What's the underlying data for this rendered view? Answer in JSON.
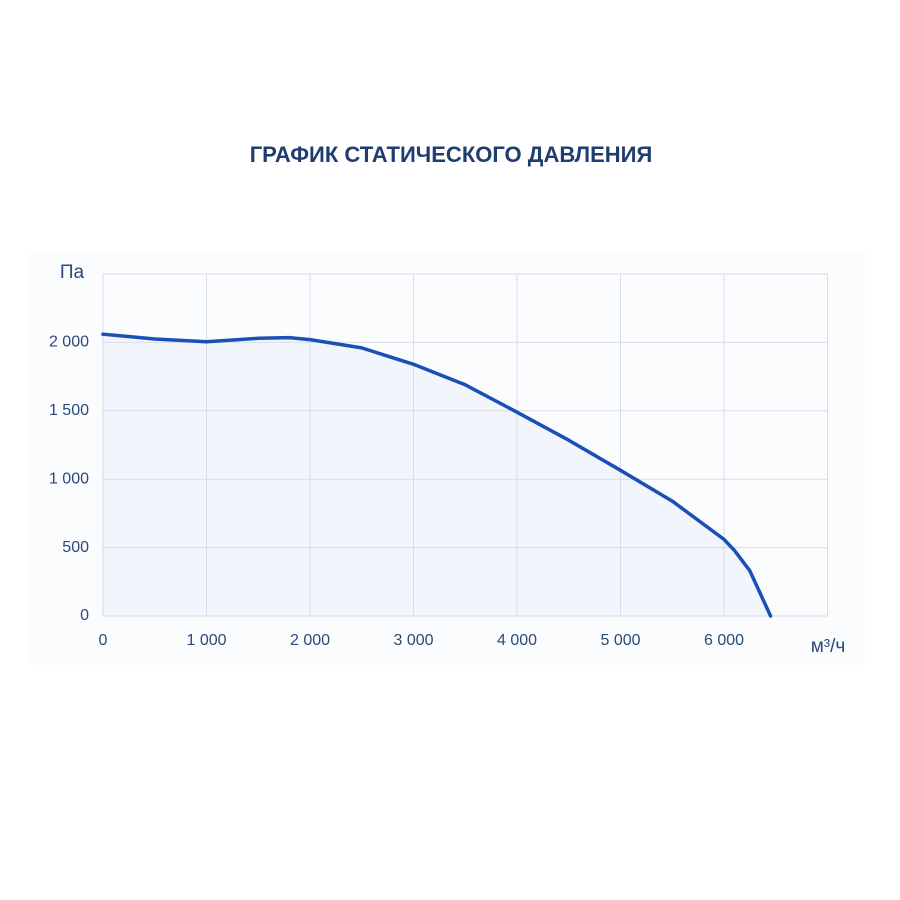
{
  "chart_data": {
    "type": "line",
    "title": "ГРАФИК СТАТИЧЕСКОГО ДАВЛЕНИЯ",
    "y_label": "Па",
    "x_label": "м³/ч",
    "x": [
      0,
      500,
      1000,
      1500,
      1800,
      2000,
      2500,
      3000,
      3500,
      4000,
      4500,
      5000,
      5500,
      6000,
      6100,
      6250,
      6450
    ],
    "series": [
      {
        "name": "Статическое давление",
        "color": "#1a4fb5",
        "values": [
          2060,
          2025,
          2005,
          2030,
          2035,
          2020,
          1960,
          1840,
          1690,
          1490,
          1285,
          1065,
          840,
          560,
          480,
          330,
          0
        ]
      }
    ],
    "xlim": [
      0,
      7000
    ],
    "xticks": [
      0,
      {
        "value": 1000,
        "label": "1 000"
      },
      {
        "value": 2000,
        "label": "2 000"
      },
      {
        "value": 3000,
        "label": "3 000"
      },
      {
        "value": 4000,
        "label": "4 000"
      },
      {
        "value": 5000,
        "label": "5 000"
      },
      {
        "value": 6000,
        "label": "6 000"
      }
    ],
    "ylim": [
      0,
      2500
    ],
    "yticks": [
      0,
      500,
      {
        "value": 1000,
        "label": "1 000"
      },
      {
        "value": 1500,
        "label": "1 500"
      },
      {
        "value": 2000,
        "label": "2 000"
      }
    ],
    "grid": true,
    "fill": "#f2f5fb"
  }
}
